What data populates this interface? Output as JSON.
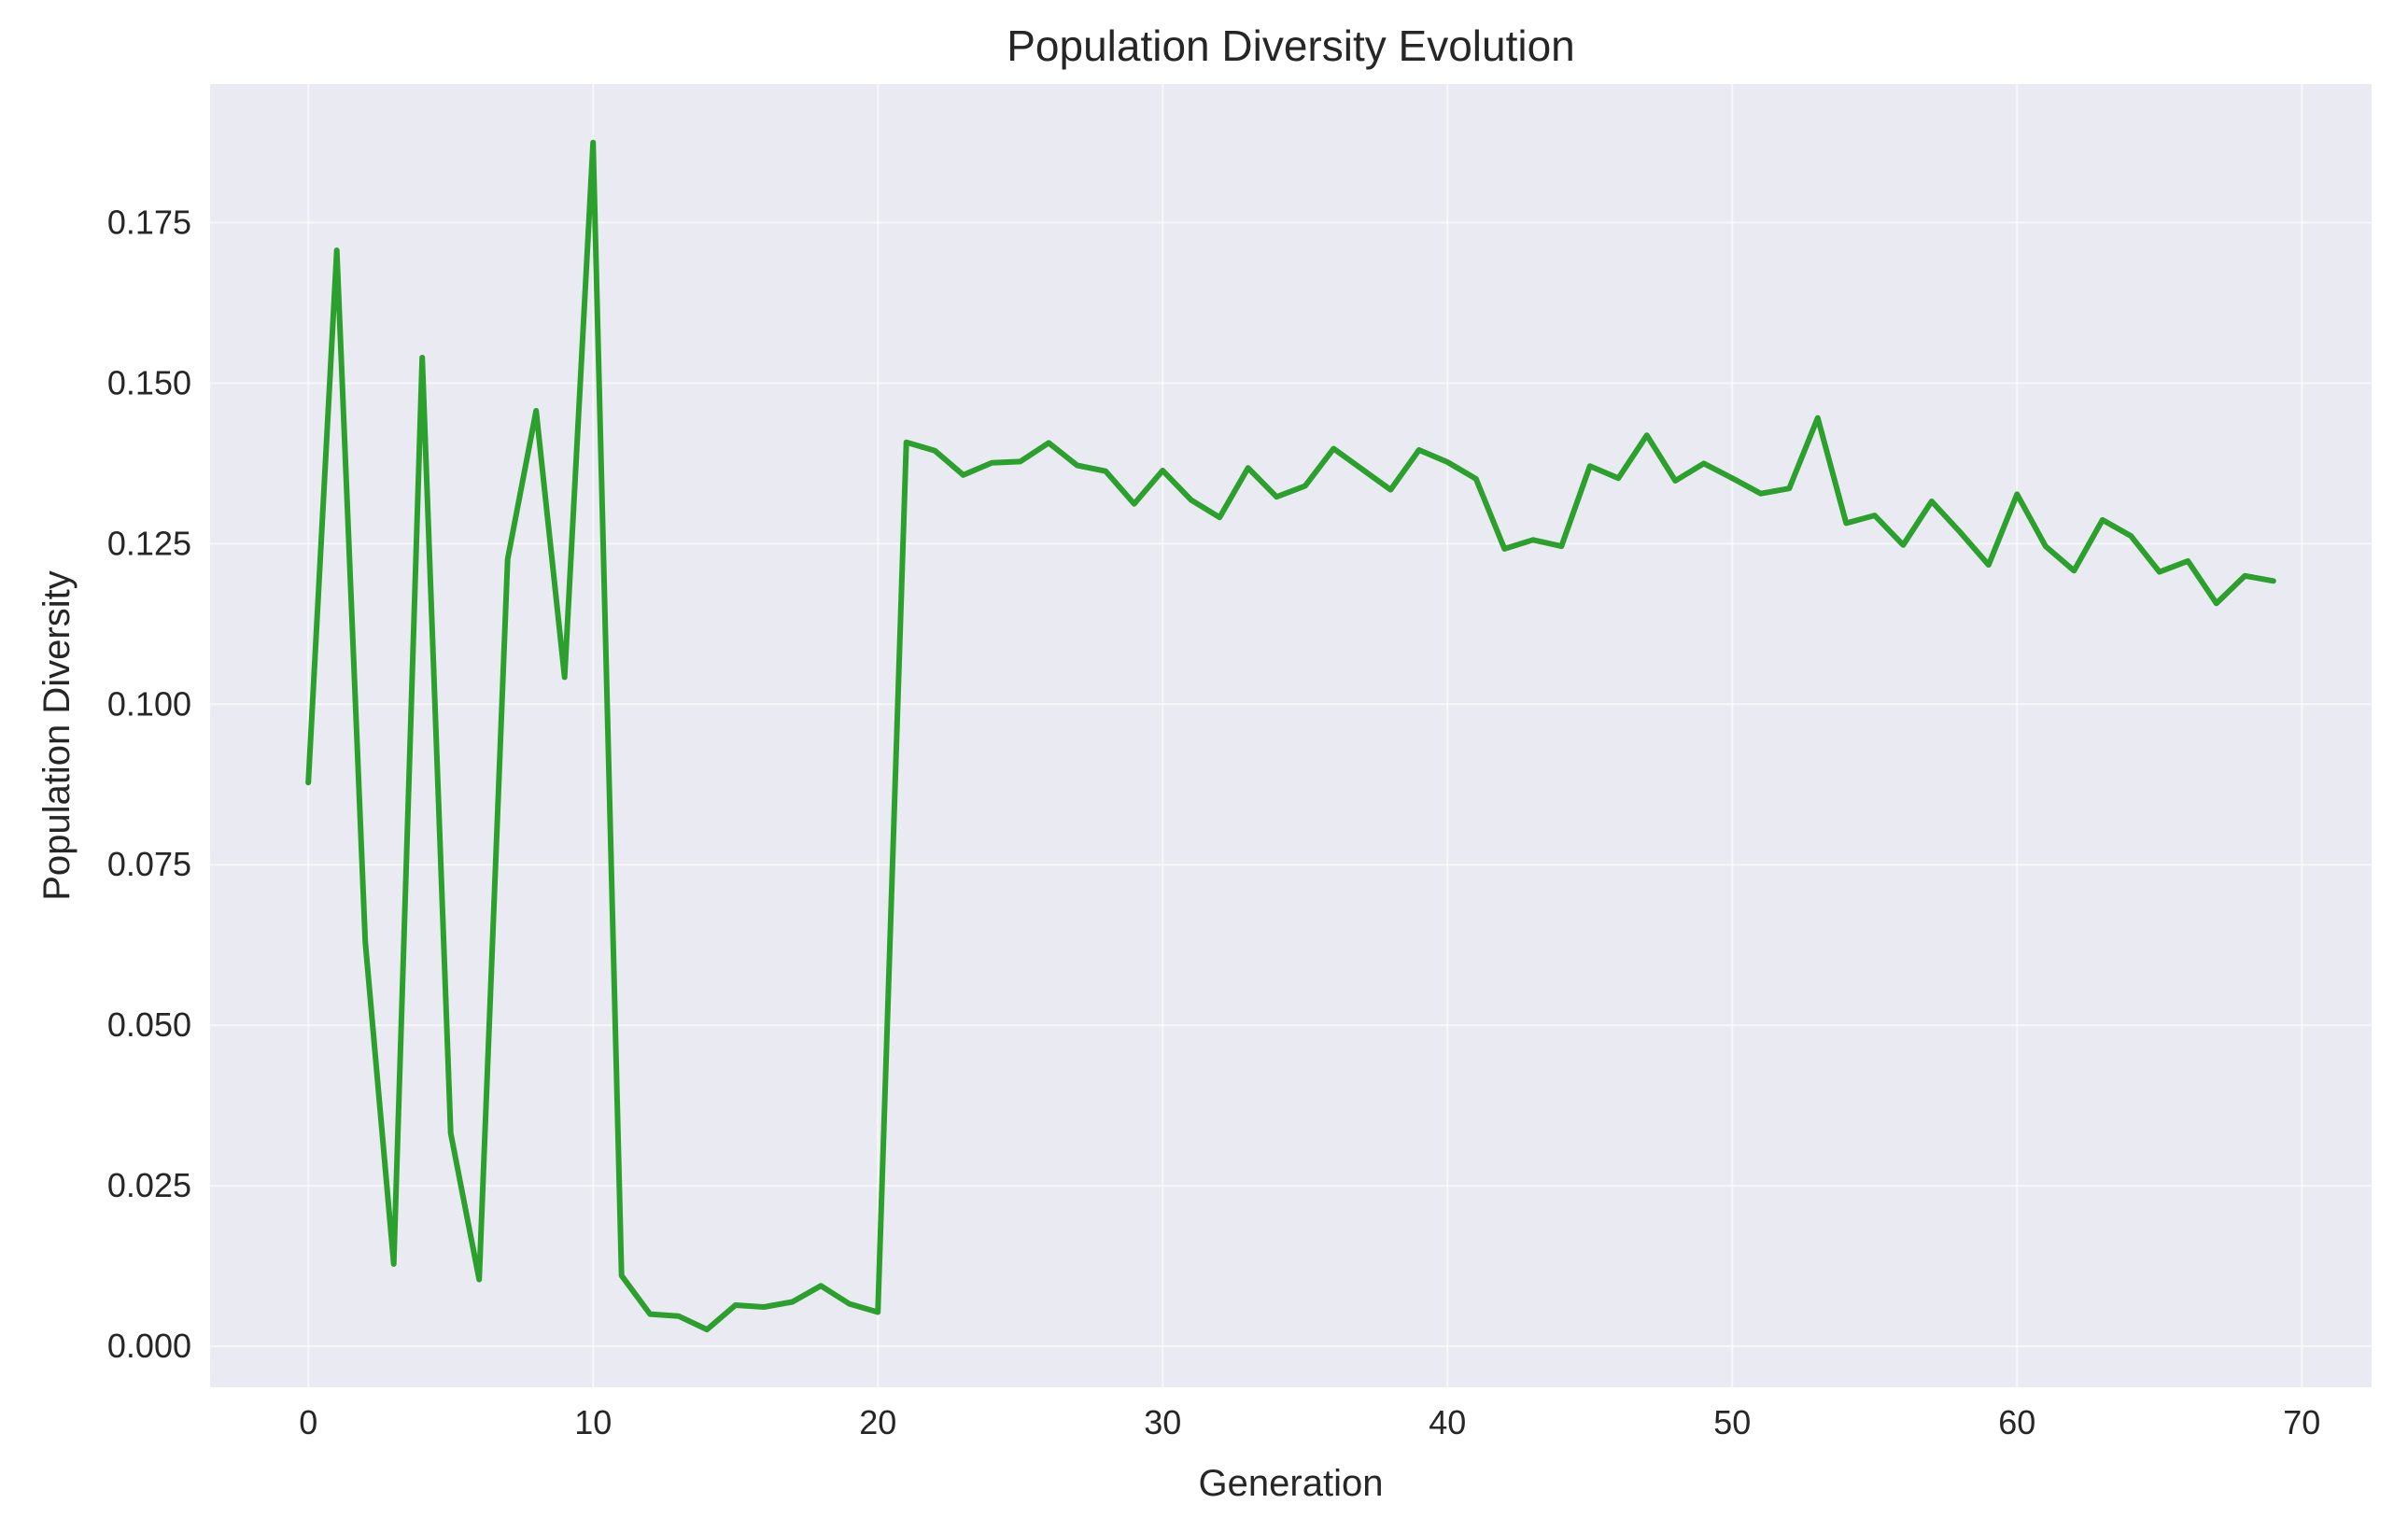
{
  "chart_data": {
    "type": "line",
    "title": "Population Diversity Evolution",
    "xlabel": "Generation",
    "ylabel": "Population Diversity",
    "xlim": [
      -3.45,
      72.45
    ],
    "ylim": [
      -0.0064,
      0.1966
    ],
    "xticks": [
      0,
      10,
      20,
      30,
      40,
      50,
      60,
      70
    ],
    "xtick_labels": [
      "0",
      "10",
      "20",
      "30",
      "40",
      "50",
      "60",
      "70"
    ],
    "yticks": [
      0,
      0.025,
      0.05,
      0.075,
      0.1,
      0.125,
      0.15,
      0.175
    ],
    "ytick_labels": [
      "0.000",
      "0.025",
      "0.050",
      "0.075",
      "0.100",
      "0.125",
      "0.150",
      "0.175"
    ],
    "grid": true,
    "series": [
      {
        "color": "#2ca02c",
        "x": [
          0,
          1,
          2,
          3,
          4,
          5,
          6,
          7,
          8,
          9,
          10,
          11,
          12,
          13,
          14,
          15,
          16,
          17,
          18,
          19,
          20,
          21,
          22,
          23,
          24,
          25,
          26,
          27,
          28,
          29,
          30,
          31,
          32,
          33,
          34,
          35,
          36,
          37,
          38,
          39,
          40,
          41,
          42,
          43,
          44,
          45,
          46,
          47,
          48,
          49,
          50,
          51,
          52,
          53,
          54,
          55,
          56,
          57,
          58,
          59,
          60,
          61,
          62,
          63,
          64,
          65,
          66,
          67,
          68,
          69
        ],
        "values": [
          0.0878,
          0.1707,
          0.063,
          0.0128,
          0.154,
          0.0332,
          0.0104,
          0.1226,
          0.1457,
          0.1042,
          0.1875,
          0.011,
          0.005,
          0.0047,
          0.0026,
          0.0064,
          0.0061,
          0.0069,
          0.0094,
          0.0066,
          0.0053,
          0.1408,
          0.1395,
          0.1357,
          0.1376,
          0.1378,
          0.1407,
          0.1372,
          0.1363,
          0.1312,
          0.1364,
          0.1318,
          0.1291,
          0.1368,
          0.1323,
          0.134,
          0.1398,
          0.1366,
          0.1334,
          0.1396,
          0.1377,
          0.1351,
          0.1242,
          0.1256,
          0.1246,
          0.1371,
          0.1352,
          0.1419,
          0.1348,
          0.1375,
          0.1352,
          0.1328,
          0.1336,
          0.1446,
          0.1282,
          0.1294,
          0.1248,
          0.1316,
          0.1268,
          0.1217,
          0.1327,
          0.1246,
          0.1208,
          0.1287,
          0.1262,
          0.1206,
          0.1223,
          0.1157,
          0.12,
          0.1192
        ]
      }
    ],
    "colors": {
      "plot_background": "#eaeaf2",
      "grid": "#ffffff",
      "line": "#2ca02c"
    }
  }
}
